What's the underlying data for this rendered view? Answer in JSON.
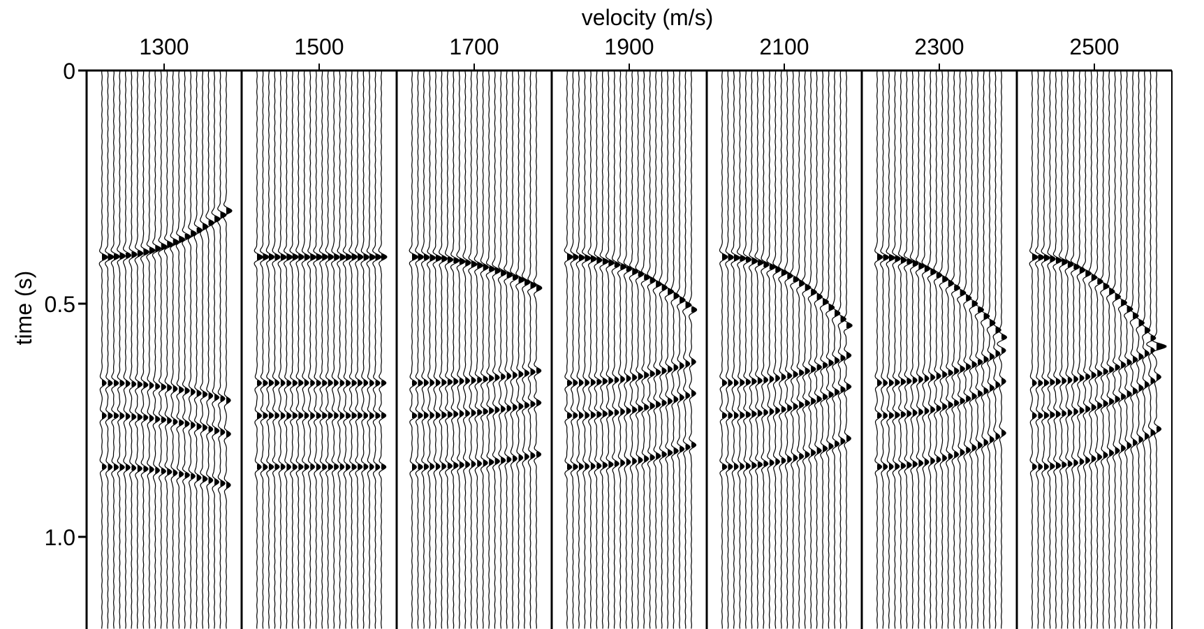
{
  "chart_data": {
    "type": "seismic-wiggle",
    "xlabel": "velocity (m/s)",
    "ylabel": "time (s)",
    "x_ticks": [
      "1300",
      "1500",
      "1700",
      "1900",
      "2100",
      "2300",
      "2500"
    ],
    "y_ticks": [
      "0",
      "0.5",
      "1.0"
    ],
    "y_tick_values": [
      0,
      0.5,
      1.0
    ],
    "ylim": [
      0,
      1.2
    ],
    "panels": [
      {
        "velocity": 1300
      },
      {
        "velocity": 1500
      },
      {
        "velocity": 1700
      },
      {
        "velocity": 1900
      },
      {
        "velocity": 2100
      },
      {
        "velocity": 2300
      },
      {
        "velocity": 2500
      }
    ],
    "reference_velocity": 1500,
    "reflector_times_s": [
      0.4,
      0.67,
      0.74,
      0.85
    ],
    "traces_per_panel": 22,
    "wiggle_color": "#000000",
    "background": "#ffffff"
  }
}
